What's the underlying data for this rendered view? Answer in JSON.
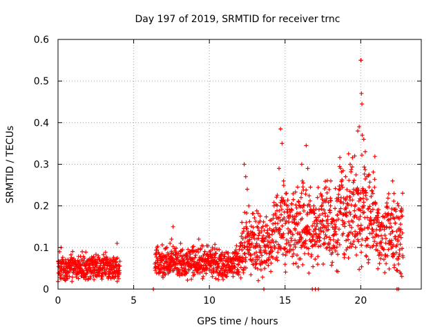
{
  "chart_data": {
    "type": "scatter",
    "title": "Day 197 of 2019, SRMTID for receiver trnc",
    "xlabel": "GPS time / hours",
    "ylabel": "SRMTID / TECUs",
    "xlim": [
      0,
      24
    ],
    "ylim": [
      0,
      0.6
    ],
    "x_ticks": [
      0,
      5,
      10,
      15,
      20
    ],
    "x_tick_labels": [
      "0",
      "5",
      "10",
      "15",
      "20"
    ],
    "y_ticks": [
      0,
      0.1,
      0.2,
      0.3,
      0.4,
      0.5,
      0.6
    ],
    "y_tick_labels": [
      "0",
      "0.1",
      "0.2",
      "0.3",
      "0.4",
      "0.5",
      "0.6"
    ],
    "grid": true,
    "marker": "+",
    "series_color": "#ff0000",
    "series": [
      {
        "name": "SRMTID",
        "segments": [
          {
            "x_start": 0.0,
            "x_end": 4.1,
            "base": 0.05,
            "spread": 0.025
          },
          {
            "x_start": 6.4,
            "x_end": 12.0,
            "base": 0.06,
            "spread": 0.03
          },
          {
            "x_start": 12.0,
            "x_end": 14.2,
            "base": 0.1,
            "spread": 0.06
          },
          {
            "x_start": 14.2,
            "x_end": 18.5,
            "base": 0.14,
            "spread": 0.08
          },
          {
            "x_start": 18.5,
            "x_end": 21.0,
            "base": 0.17,
            "spread": 0.1
          },
          {
            "x_start": 21.0,
            "x_end": 22.8,
            "base": 0.12,
            "spread": 0.07
          }
        ],
        "points": [
          [
            0.1,
            0.09
          ],
          [
            0.2,
            0.1
          ],
          [
            0.5,
            0.06
          ],
          [
            1.6,
            0.09
          ],
          [
            3.9,
            0.11
          ],
          [
            7.2,
            0.1
          ],
          [
            7.4,
            0.11
          ],
          [
            7.5,
            0.12
          ],
          [
            7.6,
            0.15
          ],
          [
            8.1,
            0.11
          ],
          [
            9.3,
            0.12
          ],
          [
            10.0,
            0.09
          ],
          [
            10.2,
            0.1
          ],
          [
            12.3,
            0.3
          ],
          [
            12.4,
            0.27
          ],
          [
            12.5,
            0.24
          ],
          [
            12.6,
            0.2
          ],
          [
            14.6,
            0.29
          ],
          [
            14.7,
            0.385
          ],
          [
            14.8,
            0.35
          ],
          [
            14.9,
            0.26
          ],
          [
            15.2,
            0.2
          ],
          [
            16.1,
            0.3
          ],
          [
            16.2,
            0.255
          ],
          [
            16.4,
            0.345
          ],
          [
            16.5,
            0.29
          ],
          [
            16.9,
            0.2
          ],
          [
            18.0,
            0.2
          ],
          [
            18.6,
            0.24
          ],
          [
            19.0,
            0.27
          ],
          [
            19.3,
            0.3
          ],
          [
            19.6,
            0.32
          ],
          [
            19.8,
            0.38
          ],
          [
            19.9,
            0.39
          ],
          [
            20.0,
            0.55
          ],
          [
            20.02,
            0.55
          ],
          [
            20.05,
            0.47
          ],
          [
            20.08,
            0.445
          ],
          [
            20.1,
            0.37
          ],
          [
            20.2,
            0.36
          ],
          [
            20.3,
            0.33
          ],
          [
            20.4,
            0.27
          ],
          [
            20.8,
            0.23
          ],
          [
            21.1,
            0.19
          ],
          [
            22.1,
            0.26
          ],
          [
            22.2,
            0.23
          ],
          [
            22.5,
            0.2
          ],
          [
            6.3,
            0.0
          ],
          [
            13.6,
            0.0
          ],
          [
            16.8,
            0.0
          ],
          [
            17.0,
            0.0
          ],
          [
            17.2,
            0.0
          ],
          [
            22.4,
            0.0
          ],
          [
            22.5,
            0.0
          ]
        ]
      }
    ]
  }
}
